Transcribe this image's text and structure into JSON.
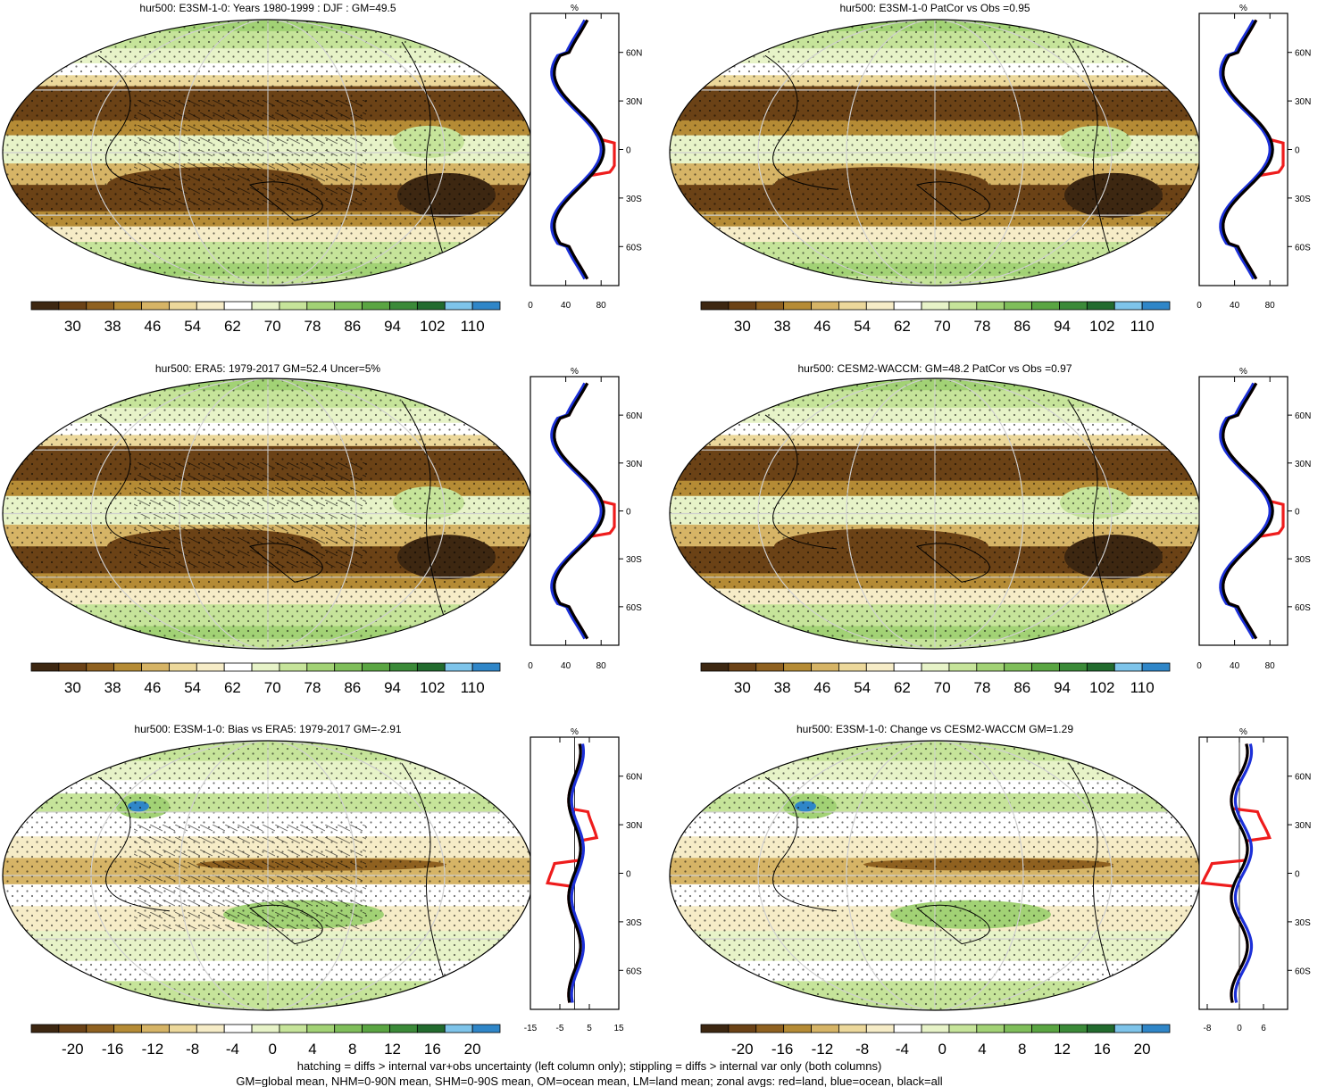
{
  "panels": [
    {
      "title": "hur500: E3SM-1-0: Years 1980-1999 : DJF : GM=49.5",
      "kind": "abs",
      "hatch": true,
      "zonal": {
        "ticks": [
          "0",
          "40",
          "80"
        ],
        "xmin": 0,
        "xmax": 100,
        "tickvals": [
          0,
          40,
          80
        ]
      }
    },
    {
      "title": "hur500: E3SM-1-0 PatCor vs Obs =0.95",
      "kind": "abs",
      "hatch": false,
      "zonal": {
        "ticks": [
          "0",
          "40",
          "80"
        ],
        "xmin": 0,
        "xmax": 100,
        "tickvals": [
          0,
          40,
          80
        ]
      }
    },
    {
      "title": "hur500: ERA5: 1979-2017 GM=52.4 Uncer=5%",
      "kind": "abs",
      "hatch": true,
      "zonal": {
        "ticks": [
          "0",
          "40",
          "80"
        ],
        "xmin": 0,
        "xmax": 100,
        "tickvals": [
          0,
          40,
          80
        ]
      }
    },
    {
      "title": "hur500: CESM2-WACCM: GM=48.2 PatCor vs Obs =0.97",
      "kind": "abs",
      "hatch": false,
      "zonal": {
        "ticks": [
          "0",
          "40",
          "80"
        ],
        "xmin": 0,
        "xmax": 100,
        "tickvals": [
          0,
          40,
          80
        ]
      }
    },
    {
      "title": "hur500: E3SM-1-0: Bias vs ERA5: 1979-2017 GM=-2.91",
      "kind": "diff",
      "hatch": true,
      "zonal": {
        "ticks": [
          "-15",
          "-5",
          "5",
          "15"
        ],
        "xmin": -15,
        "xmax": 15,
        "tickvals": [
          -15,
          -5,
          5,
          15
        ]
      }
    },
    {
      "title": "hur500: E3SM-1-0: Change vs CESM2-WACCM GM=1.29",
      "kind": "diff",
      "hatch": false,
      "zonal": {
        "ticks": [
          "-8",
          "0",
          "6"
        ],
        "xmin": -10,
        "xmax": 12,
        "tickvals": [
          -8,
          0,
          6
        ]
      }
    }
  ],
  "zonal_axis": {
    "unit": "%",
    "lat_labels": [
      "60N",
      "30N",
      "0",
      "30S",
      "60S"
    ],
    "lat_values": [
      60,
      30,
      0,
      -30,
      -60
    ]
  },
  "colorbars": {
    "abs": {
      "labels": [
        "30",
        "38",
        "46",
        "54",
        "62",
        "70",
        "78",
        "86",
        "94",
        "102",
        "110"
      ]
    },
    "diff": {
      "labels": [
        "-20",
        "-16",
        "-12",
        "-8",
        "-4",
        "0",
        "4",
        "8",
        "12",
        "16",
        "20"
      ]
    },
    "colors": [
      "#3d2711",
      "#6b4216",
      "#8f6120",
      "#b58b35",
      "#d6b466",
      "#ecd89b",
      "#f6ecc7",
      "#ffffff",
      "#e7f3c8",
      "#c6e49a",
      "#a2d275",
      "#7fbe5a",
      "#5aa542",
      "#3b8a38",
      "#226b2e",
      "#7ec4ea",
      "#2f86c8"
    ]
  },
  "legend_colors": {
    "land": "#ee1c1c",
    "ocean": "#1c30d8",
    "all": "#000000"
  },
  "footer": {
    "line1": "hatching = diffs > internal var+obs uncertainty (left column only); stippling = diffs > internal var only (both columns)",
    "line2": "GM=global mean, NHM=0-90N mean, SHM=0-90S mean, OM=ocean mean, LM=land mean; zonal avgs: red=land, blue=ocean, black=all"
  }
}
